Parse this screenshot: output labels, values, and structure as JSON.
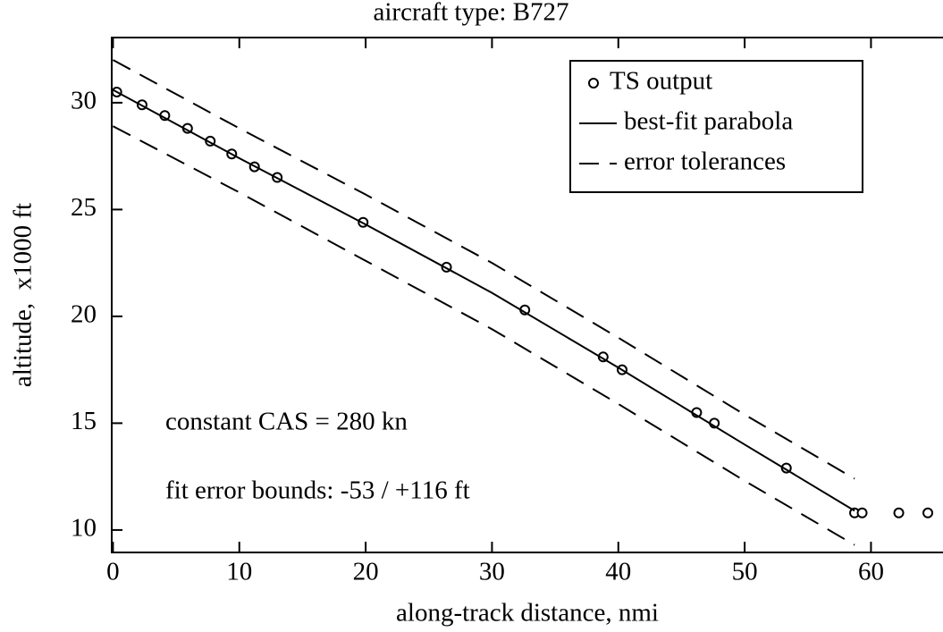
{
  "chart_data": {
    "type": "scatter",
    "title": "aircraft type: B727",
    "x_label": "along-track distance, nmi",
    "y_label": "altitude,  x1000 ft",
    "annotations": [
      "constant CAS = 280 kn",
      "fit error bounds: -53 / +116 ft"
    ],
    "xlim": [
      -0.1,
      65.7
    ],
    "ylim": [
      8.95,
      33.05
    ],
    "xticks": [
      0,
      10,
      20,
      30,
      40,
      50,
      60
    ],
    "yticks": [
      10,
      15,
      20,
      25,
      30
    ],
    "legend": "upper right",
    "series": [
      {
        "name": "TS output",
        "kind": "scatter",
        "color": "#000000",
        "x": [
          0.3,
          2.3,
          4.1,
          5.9,
          7.7,
          9.4,
          11.2,
          13.0,
          19.8,
          26.4,
          32.6,
          38.8,
          40.3,
          46.2,
          47.6,
          53.3,
          58.7,
          59.3,
          62.2,
          64.5
        ],
        "values": [
          30.5,
          29.9,
          29.4,
          28.8,
          28.2,
          27.6,
          27.0,
          26.5,
          24.4,
          22.3,
          20.3,
          18.1,
          17.5,
          15.5,
          15.0,
          12.9,
          10.8,
          10.8,
          10.8,
          10.8
        ]
      },
      {
        "name": "best-fit parabola",
        "kind": "line",
        "color": "#000000",
        "x": [
          0,
          10,
          20,
          30,
          40,
          50,
          58.7
        ],
        "values": [
          30.6,
          27.4,
          24.3,
          21.1,
          17.6,
          14.0,
          10.9
        ]
      },
      {
        "name": "error tolerances",
        "kind": "band",
        "color": "#000000",
        "x": [
          0,
          10,
          20,
          30,
          40,
          50,
          58.7
        ],
        "upper": [
          32.0,
          28.8,
          25.7,
          22.5,
          19.0,
          15.4,
          12.4
        ],
        "lower": [
          28.9,
          25.8,
          22.6,
          19.4,
          15.9,
          12.3,
          9.3
        ]
      }
    ]
  }
}
